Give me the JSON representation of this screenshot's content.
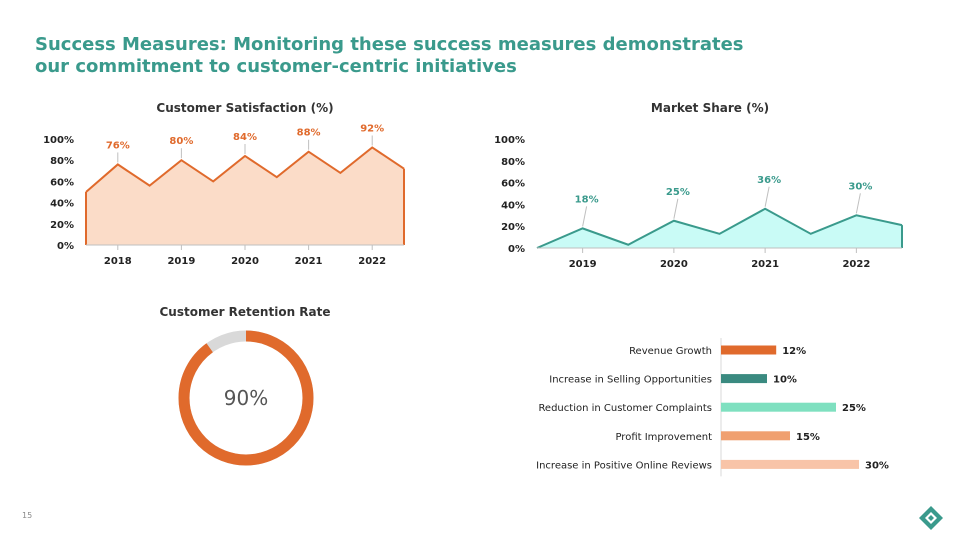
{
  "slide": {
    "title_line1": "Success Measures: Monitoring these success measures demonstrates",
    "title_line2": "our commitment to customer-centric initiatives",
    "page_number": "15"
  },
  "colors": {
    "title": "#3a9a8c",
    "orange": "#e06a2c",
    "orange_fill": "#fbdcc8",
    "teal": "#3a9a8c",
    "teal_fill": "#c9fbf6",
    "gray": "#d9d9d9"
  },
  "chart_data": [
    {
      "id": "satisfaction",
      "type": "area",
      "title": "Customer Satisfaction (%)",
      "ylim": [
        0,
        100
      ],
      "yticks": [
        "0%",
        "20%",
        "40%",
        "60%",
        "80%",
        "100%"
      ],
      "categories": [
        "2018",
        "2019",
        "2020",
        "2021",
        "2022"
      ],
      "series_values": [
        50,
        76,
        56,
        80,
        60,
        84,
        64,
        88,
        68,
        92,
        72
      ],
      "labels": [
        "76%",
        "80%",
        "84%",
        "88%",
        "92%"
      ],
      "label_indices": [
        1,
        3,
        5,
        7,
        9
      ]
    },
    {
      "id": "market_share",
      "type": "area",
      "title": "Market Share (%)",
      "ylim": [
        0,
        100
      ],
      "yticks": [
        "0%",
        "20%",
        "40%",
        "60%",
        "80%",
        "100%"
      ],
      "categories": [
        "2019",
        "2020",
        "2021",
        "2022"
      ],
      "series_values": [
        0,
        18,
        3,
        25,
        13,
        36,
        13,
        30,
        21
      ],
      "labels": [
        "18%",
        "25%",
        "36%",
        "30%"
      ],
      "label_indices": [
        1,
        3,
        5,
        7
      ]
    },
    {
      "id": "retention",
      "type": "pie",
      "title": "Customer Retention Rate",
      "value": 90,
      "label": "90%"
    },
    {
      "id": "measures",
      "type": "bar",
      "title": "",
      "categories": [
        "Revenue Growth",
        "Increase in Selling Opportunities",
        "Reduction in Customer Complaints",
        "Profit Improvement",
        "Increase in Positive Online Reviews"
      ],
      "values": [
        12,
        10,
        25,
        15,
        30
      ],
      "labels": [
        "12%",
        "10%",
        "25%",
        "15%",
        "30%"
      ],
      "bar_colors": [
        "#e06a2c",
        "#3a8a80",
        "#7fe0c0",
        "#f0a070",
        "#f8c4a8"
      ]
    }
  ]
}
